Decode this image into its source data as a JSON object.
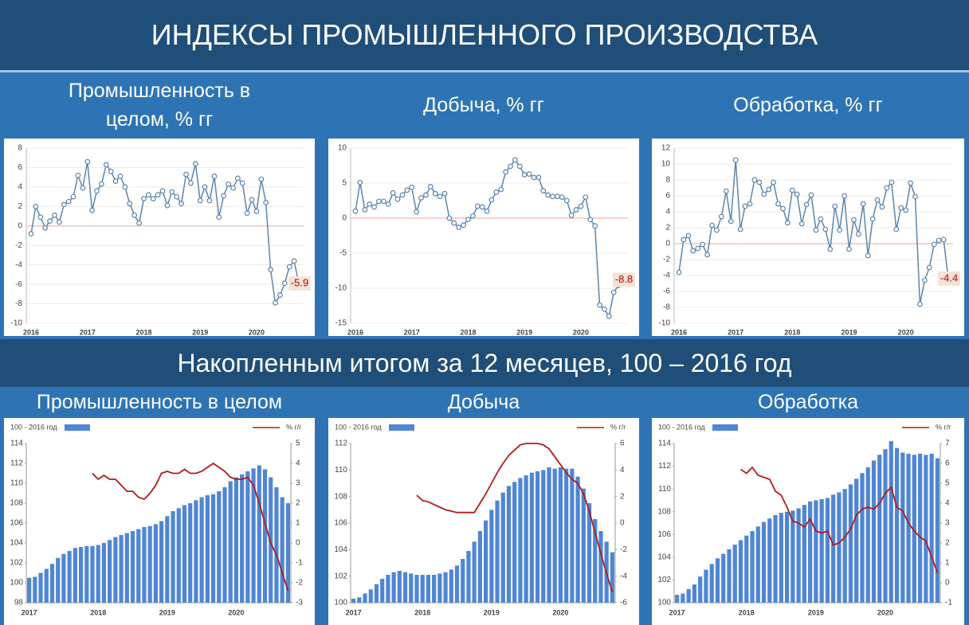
{
  "header": {
    "title": "ИНДЕКСЫ ПРОМЫШЛЕННОГО ПРОИЗВОДСТВА"
  },
  "section": {
    "title": "Накопленным итогом за 12 месяцев, 100 – 2016 год"
  },
  "chart_data": [
    {
      "type": "line",
      "title": "Промышленность в целом, % гг",
      "color": "#5b85ad",
      "markers": true,
      "grid": true,
      "reference_line": {
        "value": 0,
        "color": "#f2b8b8"
      },
      "categories": [
        "2016",
        null,
        null,
        null,
        null,
        null,
        null,
        null,
        null,
        null,
        null,
        null,
        "2017",
        null,
        null,
        null,
        null,
        null,
        null,
        null,
        null,
        null,
        null,
        null,
        "2018",
        null,
        null,
        null,
        null,
        null,
        null,
        null,
        null,
        null,
        null,
        null,
        "2019",
        null,
        null,
        null,
        null,
        null,
        null,
        null,
        null,
        null,
        null,
        null,
        "2020",
        null,
        null,
        null,
        null,
        null,
        null,
        null,
        null,
        null
      ],
      "values": [
        -0.8,
        2.0,
        0.9,
        -0.2,
        0.5,
        1.1,
        0.4,
        2.2,
        2.5,
        3.0,
        5.2,
        3.9,
        6.6,
        1.6,
        3.6,
        4.3,
        6.3,
        5.6,
        4.6,
        5.1,
        4.0,
        2.3,
        1.1,
        0.3,
        2.8,
        3.2,
        2.8,
        3.2,
        3.6,
        2.1,
        3.5,
        3.0,
        2.3,
        5.3,
        4.4,
        6.4,
        2.6,
        4.0,
        2.6,
        5.1,
        0.9,
        3.1,
        4.3,
        3.9,
        4.9,
        4.4,
        1.3,
        2.7,
        1.5,
        4.8,
        2.4,
        -4.5,
        -7.9,
        -7.1,
        -5.9,
        -4.2,
        -3.6,
        -5.9
      ],
      "annotation": "-5.9",
      "ylim": [
        -10,
        8
      ],
      "yticks": [
        -10,
        -8,
        -6,
        -4,
        -2,
        0,
        2,
        4,
        6,
        8
      ]
    },
    {
      "type": "line",
      "title": "Добыча, % гг",
      "color": "#5b85ad",
      "markers": true,
      "grid": true,
      "reference_line": {
        "value": 0,
        "color": "#f2b8b8"
      },
      "categories": [
        "2016",
        null,
        null,
        null,
        null,
        null,
        null,
        null,
        null,
        null,
        null,
        null,
        "2017",
        null,
        null,
        null,
        null,
        null,
        null,
        null,
        null,
        null,
        null,
        null,
        "2018",
        null,
        null,
        null,
        null,
        null,
        null,
        null,
        null,
        null,
        null,
        null,
        "2019",
        null,
        null,
        null,
        null,
        null,
        null,
        null,
        null,
        null,
        null,
        null,
        "2020",
        null,
        null,
        null,
        null,
        null,
        null,
        null,
        null,
        null
      ],
      "values": [
        1.0,
        5.1,
        1.2,
        2.0,
        1.6,
        2.4,
        2.4,
        2.0,
        3.6,
        2.7,
        3.3,
        4.0,
        4.4,
        0.9,
        2.9,
        3.3,
        4.5,
        3.5,
        3.1,
        3.5,
        0.0,
        -0.7,
        -1.3,
        -1.0,
        -0.2,
        0.3,
        1.7,
        1.6,
        1.0,
        2.6,
        3.7,
        4.1,
        6.6,
        7.4,
        8.3,
        7.4,
        6.2,
        6.3,
        5.8,
        5.8,
        3.9,
        3.3,
        3.1,
        3.1,
        3.0,
        2.5,
        0.4,
        1.2,
        1.7,
        3.0,
        -0.2,
        -1.1,
        -12.4,
        -13.0,
        -14.0,
        -10.6,
        -9.6,
        -8.8
      ],
      "annotation": "-8.8",
      "ylim": [
        -15,
        10
      ],
      "yticks": [
        -15,
        -10,
        -5,
        0,
        5,
        10
      ]
    },
    {
      "type": "line",
      "title": "Обработка, % гг",
      "color": "#5b85ad",
      "markers": true,
      "grid": true,
      "reference_line": {
        "value": 0,
        "color": "#f2b8b8"
      },
      "categories": [
        "2016",
        null,
        null,
        null,
        null,
        null,
        null,
        null,
        null,
        null,
        null,
        null,
        "2017",
        null,
        null,
        null,
        null,
        null,
        null,
        null,
        null,
        null,
        null,
        null,
        "2018",
        null,
        null,
        null,
        null,
        null,
        null,
        null,
        null,
        null,
        null,
        null,
        "2019",
        null,
        null,
        null,
        null,
        null,
        null,
        null,
        null,
        null,
        null,
        null,
        "2020",
        null,
        null,
        null,
        null,
        null,
        null,
        null,
        null,
        null
      ],
      "values": [
        -3.6,
        0.5,
        1.0,
        -0.9,
        -0.6,
        -0.1,
        -1.4,
        2.3,
        1.7,
        3.4,
        6.6,
        2.8,
        10.5,
        1.8,
        4.7,
        5.0,
        8.0,
        7.7,
        6.2,
        6.8,
        7.7,
        5.0,
        4.4,
        2.6,
        6.7,
        6.2,
        2.5,
        4.9,
        6.1,
        1.7,
        3.1,
        1.8,
        -0.7,
        4.7,
        1.7,
        6.0,
        -0.7,
        3.0,
        1.2,
        5.0,
        -1.5,
        3.1,
        5.5,
        4.6,
        7.0,
        7.7,
        1.8,
        4.5,
        4.2,
        7.6,
        5.9,
        -7.6,
        -4.6,
        -3.0,
        -0.1,
        0.4,
        0.5,
        -4.4
      ],
      "annotation": "-4.4",
      "ylim": [
        -10,
        12
      ],
      "yticks": [
        -10,
        -8,
        -6,
        -4,
        -2,
        0,
        2,
        4,
        6,
        8,
        10,
        12
      ]
    },
    {
      "type": "bar",
      "title": "Промышленность в целом",
      "categories": [
        "2017",
        null,
        null,
        null,
        null,
        null,
        null,
        null,
        null,
        null,
        null,
        null,
        "2018",
        null,
        null,
        null,
        null,
        null,
        null,
        null,
        null,
        null,
        null,
        null,
        "2019",
        null,
        null,
        null,
        null,
        null,
        null,
        null,
        null,
        null,
        null,
        null,
        "2020",
        null,
        null,
        null,
        null,
        null,
        null,
        null,
        null,
        null
      ],
      "series": [
        {
          "name": "100 - 2016 год",
          "color": "#4f86d4",
          "values": [
            100.5,
            100.6,
            101.0,
            101.4,
            101.9,
            102.5,
            102.9,
            103.2,
            103.5,
            103.6,
            103.7,
            103.7,
            103.8,
            104.0,
            104.3,
            104.6,
            104.8,
            105.0,
            105.2,
            105.4,
            105.6,
            105.7,
            105.9,
            106.2,
            106.7,
            107.2,
            107.5,
            107.8,
            108.0,
            108.3,
            108.6,
            108.8,
            108.9,
            109.2,
            109.6,
            110.2,
            110.6,
            110.9,
            111.2,
            111.5,
            111.8,
            111.4,
            110.6,
            109.6,
            108.6,
            108.0
          ]
        },
        {
          "name": "% г/г",
          "color": "#b31b1b",
          "type": "line",
          "axis": "y2",
          "values": [
            null,
            null,
            null,
            null,
            null,
            null,
            null,
            null,
            null,
            null,
            null,
            3.5,
            3.2,
            3.4,
            3.2,
            3.2,
            2.9,
            2.6,
            2.6,
            2.3,
            2.2,
            2.5,
            2.9,
            3.5,
            3.6,
            3.5,
            3.5,
            3.7,
            3.5,
            3.5,
            3.6,
            3.8,
            4.0,
            3.8,
            3.6,
            3.3,
            3.2,
            3.2,
            3.3,
            2.9,
            2.0,
            1.0,
            0.0,
            -0.6,
            -1.5,
            -2.4
          ]
        }
      ],
      "ylim": [
        98,
        114
      ],
      "yticks": [
        98,
        100,
        102,
        104,
        106,
        108,
        110,
        112,
        114
      ],
      "y2lim": [
        -3,
        5
      ],
      "y2ticks": [
        -3,
        -2,
        -1,
        0,
        1,
        2,
        3,
        4,
        5
      ]
    },
    {
      "type": "bar",
      "title": "Добыча",
      "categories": [
        "2017",
        null,
        null,
        null,
        null,
        null,
        null,
        null,
        null,
        null,
        null,
        null,
        "2018",
        null,
        null,
        null,
        null,
        null,
        null,
        null,
        null,
        null,
        null,
        null,
        "2019",
        null,
        null,
        null,
        null,
        null,
        null,
        null,
        null,
        null,
        null,
        null,
        "2020",
        null,
        null,
        null,
        null,
        null,
        null,
        null,
        null,
        null
      ],
      "series": [
        {
          "name": "100 - 2016 год",
          "color": "#4f86d4",
          "values": [
            100.3,
            100.4,
            100.7,
            101.0,
            101.4,
            101.8,
            102.1,
            102.3,
            102.4,
            102.3,
            102.2,
            102.1,
            102.1,
            102.1,
            102.1,
            102.2,
            102.3,
            102.5,
            102.8,
            103.3,
            103.9,
            104.6,
            105.4,
            106.2,
            107.0,
            107.7,
            108.3,
            108.8,
            109.1,
            109.4,
            109.6,
            109.8,
            109.9,
            110.0,
            110.2,
            110.1,
            110.2,
            110.1,
            110.1,
            109.5,
            108.6,
            107.5,
            106.3,
            105.4,
            104.6,
            103.8
          ]
        },
        {
          "name": "% г/г",
          "color": "#b31b1b",
          "type": "line",
          "axis": "y2",
          "values": [
            null,
            null,
            null,
            null,
            null,
            null,
            null,
            null,
            null,
            null,
            null,
            2.1,
            1.7,
            1.6,
            1.4,
            1.2,
            1.0,
            0.9,
            0.8,
            0.8,
            0.8,
            0.8,
            1.5,
            2.2,
            3.0,
            3.8,
            4.5,
            5.1,
            5.5,
            5.9,
            6.0,
            6.0,
            6.0,
            5.9,
            5.6,
            5.0,
            4.4,
            3.8,
            3.3,
            3.0,
            2.2,
            0.9,
            -0.7,
            -2.3,
            -3.8,
            -5.2
          ]
        }
      ],
      "ylim": [
        100,
        112
      ],
      "yticks": [
        100,
        102,
        104,
        106,
        108,
        110,
        112
      ],
      "y2lim": [
        -6,
        6
      ],
      "y2ticks": [
        -6,
        -4,
        -2,
        0,
        2,
        4,
        6
      ]
    },
    {
      "type": "bar",
      "title": "Обработка",
      "categories": [
        "2017",
        null,
        null,
        null,
        null,
        null,
        null,
        null,
        null,
        null,
        null,
        null,
        "2018",
        null,
        null,
        null,
        null,
        null,
        null,
        null,
        null,
        null,
        null,
        null,
        "2019",
        null,
        null,
        null,
        null,
        null,
        null,
        null,
        null,
        null,
        null,
        null,
        "2020",
        null,
        null,
        null,
        null,
        null,
        null,
        null,
        null,
        null
      ],
      "series": [
        {
          "name": "100 - 2016 год",
          "color": "#4f86d4",
          "values": [
            100.7,
            100.8,
            101.2,
            101.6,
            102.3,
            102.9,
            103.4,
            103.9,
            104.3,
            104.7,
            105.1,
            105.5,
            105.9,
            106.3,
            106.7,
            107.1,
            107.4,
            107.7,
            107.9,
            108.0,
            108.1,
            108.3,
            108.6,
            108.9,
            109.0,
            109.1,
            109.2,
            109.5,
            109.7,
            110.0,
            110.4,
            110.9,
            111.4,
            111.9,
            112.5,
            113.0,
            113.5,
            114.2,
            113.6,
            113.2,
            113.1,
            113.0,
            113.1,
            113.0,
            113.1,
            112.7
          ]
        },
        {
          "name": "% г/г",
          "color": "#b31b1b",
          "type": "line",
          "axis": "y2",
          "values": [
            null,
            null,
            null,
            null,
            null,
            null,
            null,
            null,
            null,
            null,
            null,
            5.7,
            5.5,
            5.8,
            5.4,
            5.3,
            5.2,
            4.6,
            4.4,
            3.8,
            3.1,
            3.0,
            2.8,
            3.2,
            2.6,
            2.5,
            2.6,
            1.9,
            2.0,
            2.3,
            2.7,
            3.4,
            3.7,
            3.8,
            3.7,
            4.0,
            4.5,
            4.8,
            3.8,
            3.6,
            3.0,
            2.6,
            2.3,
            2.1,
            1.3,
            0.5
          ]
        }
      ],
      "ylim": [
        100,
        114
      ],
      "yticks": [
        100,
        102,
        104,
        106,
        108,
        110,
        112,
        114
      ],
      "y2lim": [
        -1,
        7
      ],
      "y2ticks": [
        -1,
        0,
        1,
        2,
        3,
        4,
        5,
        6,
        7
      ]
    }
  ]
}
